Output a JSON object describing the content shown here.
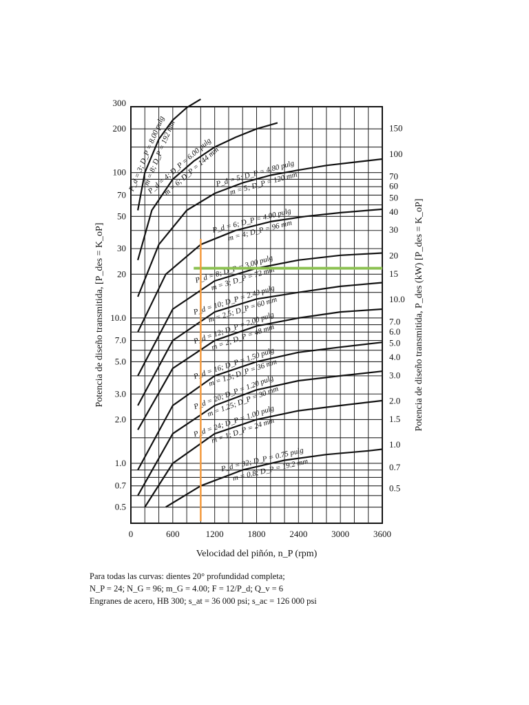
{
  "chart_data": {
    "type": "line",
    "xlabel": "Velocidad del piñón, n_P (rpm)",
    "ylabel_left": "Potencia de diseño transmitida, [P_des = K_oP]",
    "ylabel_right": "Potencia de diseño transmitida, P_des (kW)  [P_des = K_oP]",
    "x_ticks": [
      "0",
      "600",
      "1200",
      "1800",
      "2400",
      "3000",
      "3600"
    ],
    "x_tick_values": [
      0,
      600,
      1200,
      1800,
      2400,
      3000,
      3600
    ],
    "xlim": [
      0,
      3600
    ],
    "y_scale": "log",
    "y_left_ticks": [
      "300",
      "200",
      "100",
      "70",
      "50",
      "30",
      "20",
      "10.0",
      "7.0",
      "5.0",
      "3.0",
      "2.0",
      "1.0",
      "0.7",
      "0.5"
    ],
    "y_left_values": [
      300,
      200,
      100,
      70,
      50,
      30,
      20,
      10,
      7,
      5,
      3,
      2,
      1,
      0.7,
      0.5
    ],
    "y_right_ticks": [
      "150",
      "100",
      "70",
      "60",
      "50",
      "40",
      "30",
      "20",
      "15",
      "10.0",
      "7.0",
      "6.0",
      "5.0",
      "4.0",
      "3.0",
      "2.0",
      "1.5",
      "1.0",
      "0.7",
      "0.5"
    ],
    "y_right_values": [
      150,
      100,
      70,
      60,
      50,
      40,
      30,
      20,
      15,
      10,
      7,
      6,
      5,
      4,
      3,
      2,
      1.5,
      1,
      0.7,
      0.5
    ],
    "series": [
      {
        "label1": "P_d = 3; D_P = 8.00 pulg",
        "label2": "m = 8; D_P = 192 mm",
        "x": [
          100,
          200,
          400,
          600,
          800,
          1000
        ],
        "y": [
          55,
          100,
          170,
          230,
          280,
          320
        ]
      },
      {
        "label1": "P_d = 4; D_P = 6.00 pulg",
        "label2": "m = 6; D_P = 144 mm",
        "x": [
          100,
          300,
          600,
          900,
          1200,
          1500,
          1800,
          2100
        ],
        "y": [
          25,
          55,
          90,
          120,
          150,
          175,
          200,
          220
        ]
      },
      {
        "label1": "P_d = 5; D_P = 4.80 pulg",
        "label2": "m = 5; D_P = 120 mm",
        "x": [
          100,
          400,
          800,
          1200,
          1600,
          2000,
          2400,
          2800,
          3200,
          3600
        ],
        "y": [
          14,
          32,
          55,
          72,
          85,
          96,
          104,
          112,
          118,
          124
        ]
      },
      {
        "label1": "P_d = 6; D_P = 4.00 pulg",
        "label2": "m = 4; D_P = 96 mm",
        "x": [
          100,
          500,
          1000,
          1500,
          2000,
          2500,
          3000,
          3600
        ],
        "y": [
          8,
          20,
          32,
          40,
          46,
          50,
          53,
          56
        ]
      },
      {
        "label1": "P_d = 8; D_P = 3.00 pulg",
        "label2": "m = 3; D_P = 72 mm",
        "x": [
          100,
          600,
          1200,
          1800,
          2400,
          3000,
          3600
        ],
        "y": [
          4,
          11.5,
          18,
          22,
          25,
          27,
          28
        ]
      },
      {
        "label1": "P_d = 10; D_P = 2.40 pulg",
        "label2": "m = 2.5; D_P = 60 mm",
        "x": [
          100,
          600,
          1200,
          1800,
          2400,
          3000,
          3600
        ],
        "y": [
          2.5,
          7,
          11,
          13.5,
          15,
          16.5,
          17.5
        ]
      },
      {
        "label1": "P_d = 12; D_P = 2.00 pulg",
        "label2": "m = 2; D_P = 48 mm",
        "x": [
          100,
          600,
          1200,
          1800,
          2400,
          3000,
          3600
        ],
        "y": [
          1.7,
          4.5,
          7,
          8.8,
          10,
          11,
          11.5
        ]
      },
      {
        "label1": "P_d = 16; D_P = 1.50 pulg",
        "label2": "m = 1.5; D_P = 36 mm",
        "x": [
          100,
          600,
          1200,
          1800,
          2400,
          3000,
          3600
        ],
        "y": [
          0.9,
          2.5,
          4.0,
          5.0,
          5.8,
          6.3,
          6.8
        ]
      },
      {
        "label1": "P_d = 20; D_P = 1.20 pulg",
        "label2": "m = 1.25; D_P = 30 mm",
        "x": [
          100,
          600,
          1200,
          1800,
          2400,
          3000,
          3600
        ],
        "y": [
          0.6,
          1.6,
          2.5,
          3.2,
          3.7,
          4.0,
          4.3
        ]
      },
      {
        "label1": "P_d = 24; D_P = 1.00 pulg",
        "label2": "m = 1; D_P = 24 mm",
        "x": [
          200,
          600,
          1200,
          1800,
          2400,
          3000,
          3600
        ],
        "y": [
          0.5,
          1.0,
          1.6,
          2.0,
          2.3,
          2.5,
          2.7
        ]
      },
      {
        "label1": "P_d = 32; D_P = 0.75 pulg",
        "label2": "m = 0.8; D_P = 19.2 mm",
        "x": [
          500,
          1000,
          1600,
          2200,
          2800,
          3400,
          3600
        ],
        "y": [
          0.5,
          0.7,
          0.9,
          1.05,
          1.15,
          1.22,
          1.25
        ]
      }
    ],
    "overlays": [
      {
        "color": "#8cc152",
        "orientation": "horizontal",
        "y": 22,
        "x_from": 900,
        "x_to": 3600
      },
      {
        "color": "#f39a3d",
        "orientation": "vertical",
        "x": 1000,
        "y_from": 0.4,
        "y_to": 35
      }
    ]
  },
  "notes": {
    "line1": "Para todas las curvas: dientes 20° profundidad completa;",
    "line2": "N_P = 24; N_G = 96; m_G = 4.00; F = 12/P_d; Q_v = 6",
    "line3": "Engranes de acero, HB 300; s_at = 36 000 psi; s_ac = 126 000 psi"
  }
}
